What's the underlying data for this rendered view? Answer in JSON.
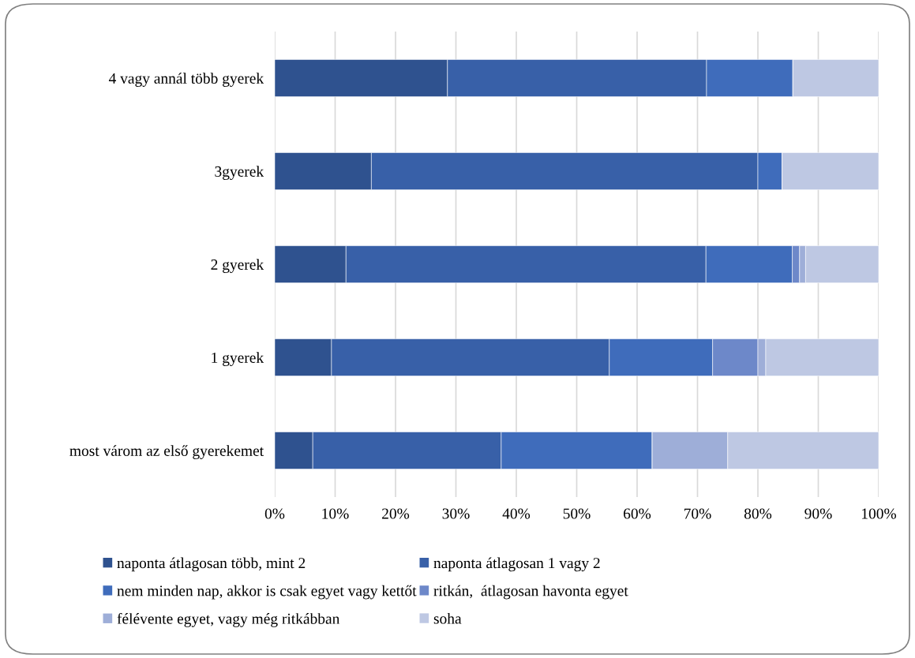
{
  "chart_data": {
    "type": "bar",
    "orientation": "horizontal",
    "stacked": true,
    "categories": [
      "4 vagy annál több gyerek",
      "3gyerek",
      "2 gyerek",
      "1 gyerek",
      "most várom az első gyerekemet"
    ],
    "series": [
      {
        "name": "naponta átlagosan több, mint 2",
        "color": "#2f528f",
        "values": [
          28.6,
          16,
          11.8,
          9.4,
          6.3
        ]
      },
      {
        "name": "naponta átlagosan 1 vagy 2",
        "color": "#3860a8",
        "values": [
          42.9,
          64,
          59.6,
          46,
          31.2
        ]
      },
      {
        "name": "nem minden nap, akkor is csak egyet vagy kettőt",
        "color": "#3f6cbb",
        "values": [
          14.3,
          4,
          14.3,
          17.1,
          25
        ]
      },
      {
        "name": "ritkán,  átlagosan havonta egyet",
        "color": "#6d88c9",
        "values": [
          0,
          0,
          1.2,
          7.5,
          0
        ]
      },
      {
        "name": "félévente egyet, vagy még ritkábban",
        "color": "#9eaed8",
        "values": [
          0,
          0,
          1.0,
          1.3,
          12.5
        ]
      },
      {
        "name": "soha",
        "color": "#bec8e3",
        "values": [
          14.2,
          16,
          12.1,
          18.7,
          25
        ]
      }
    ],
    "xlim": [
      0,
      100
    ],
    "xticks": [
      {
        "value": 0,
        "label": "0%"
      },
      {
        "value": 10,
        "label": "10%"
      },
      {
        "value": 20,
        "label": "20%"
      },
      {
        "value": 30,
        "label": "30%"
      },
      {
        "value": 40,
        "label": "40%"
      },
      {
        "value": 50,
        "label": "50%"
      },
      {
        "value": 60,
        "label": "60%"
      },
      {
        "value": 70,
        "label": "70%"
      },
      {
        "value": 80,
        "label": "80%"
      },
      {
        "value": 90,
        "label": "90%"
      },
      {
        "value": 100,
        "label": "100%"
      }
    ],
    "grid": "x",
    "legend": "bottom"
  }
}
